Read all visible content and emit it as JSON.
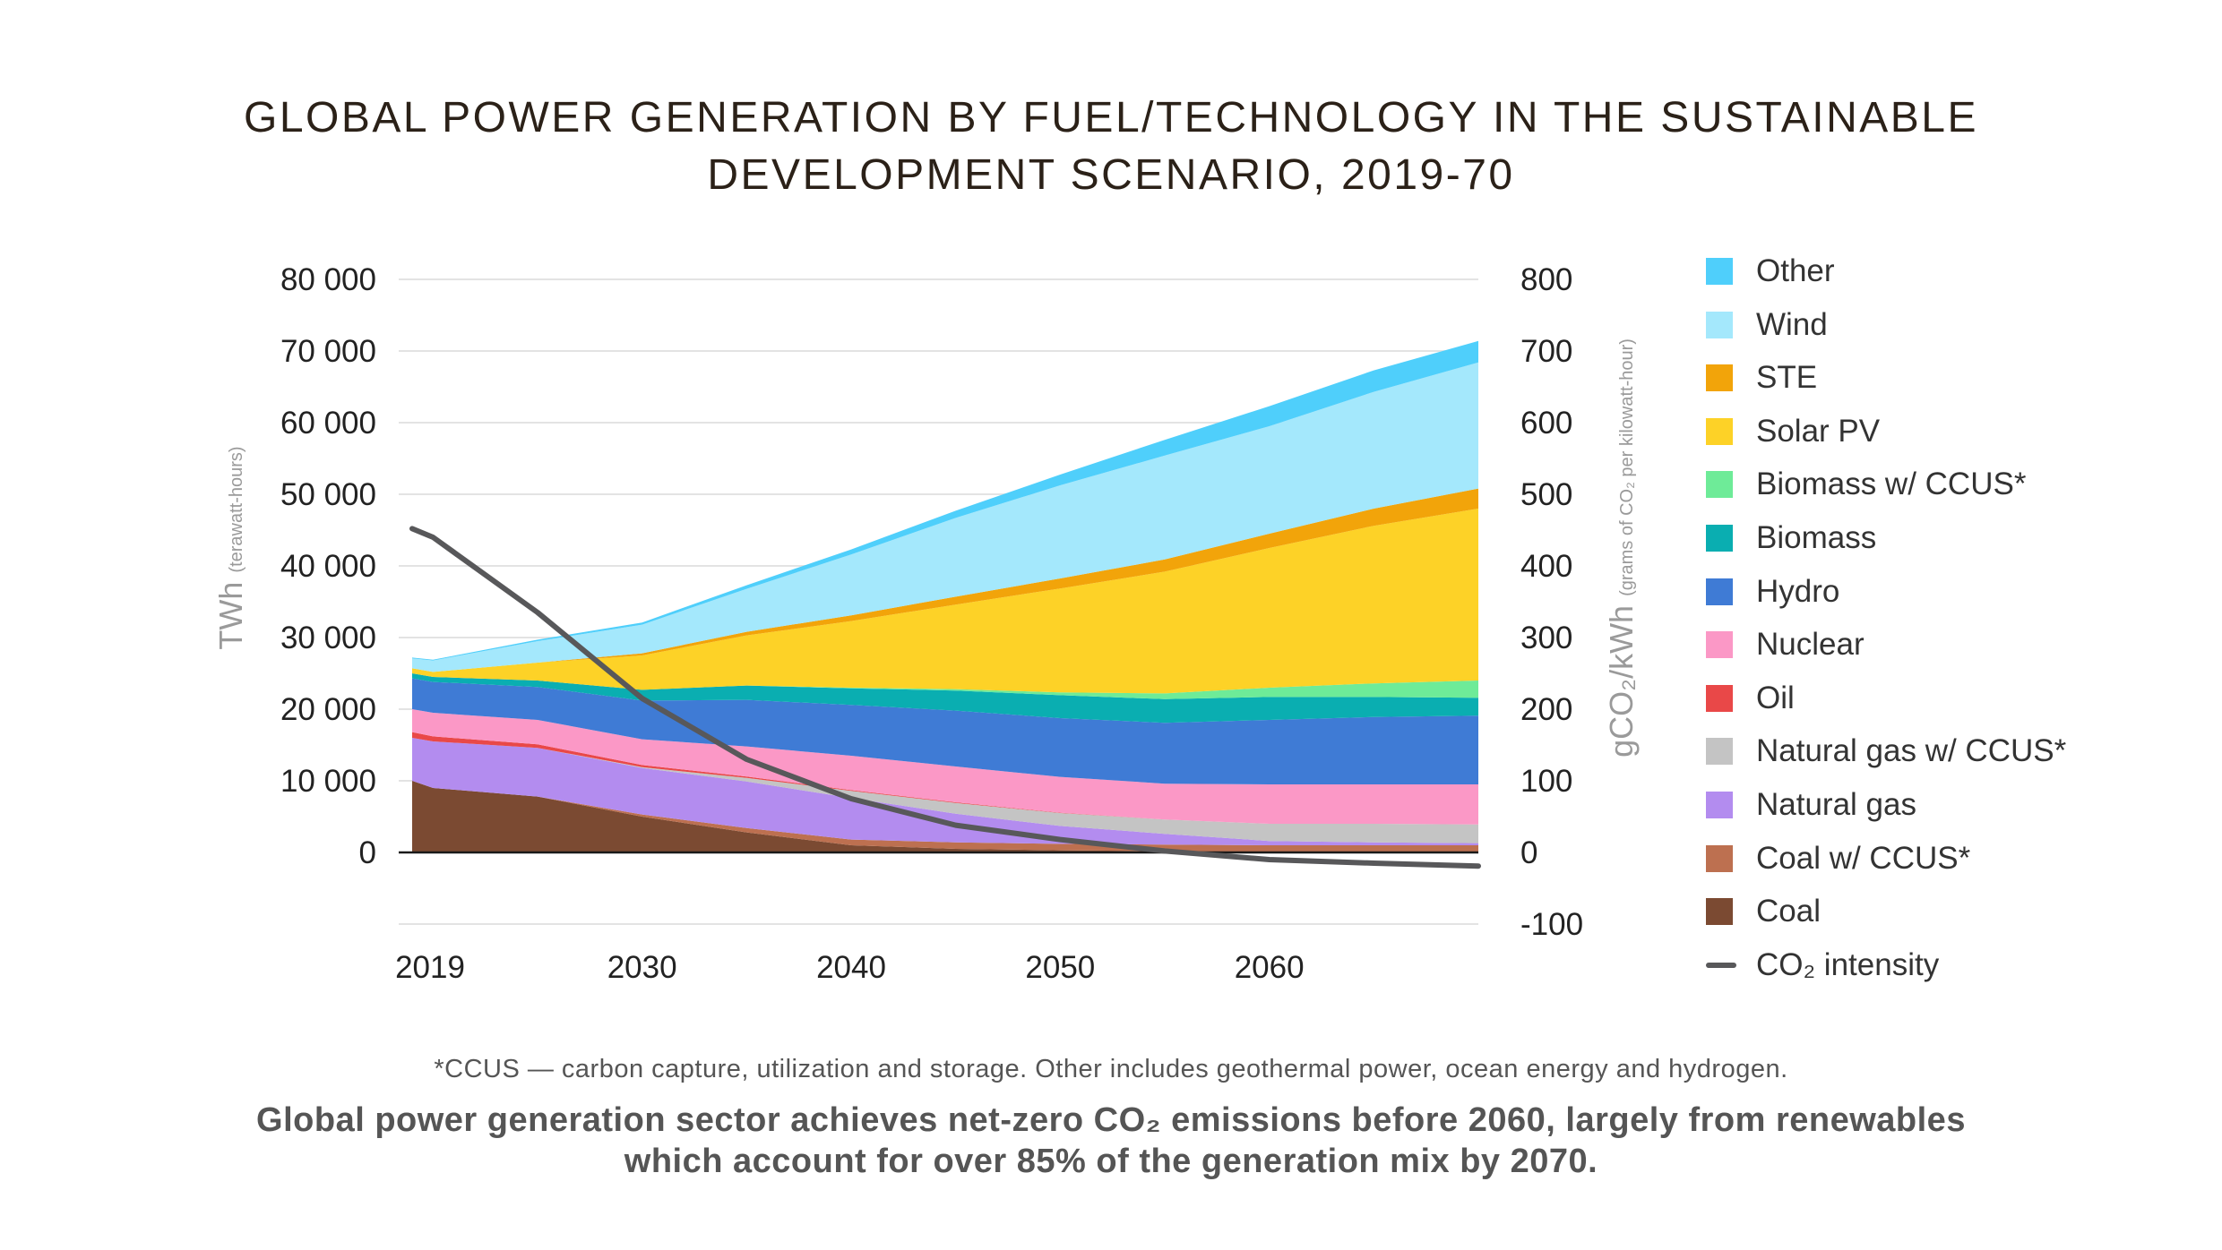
{
  "title": {
    "line1": "GLOBAL POWER GENERATION BY FUEL/TECHNOLOGY IN THE SUSTAINABLE",
    "line2": "DEVELOPMENT SCENARIO, 2019-70"
  },
  "footnote": "*CCUS — carbon capture, utilization and storage. Other includes geothermal power, ocean energy and hydrogen.",
  "caption": {
    "line1": "Global power generation sector achieves net-zero CO₂ emissions before 2060, largely from renewables",
    "line2": "which account for over 85% of the generation mix by 2070."
  },
  "chart_data": {
    "type": "area",
    "stacked": true,
    "x": [
      2019,
      2020,
      2025,
      2030,
      2035,
      2040,
      2045,
      2050,
      2055,
      2060,
      2065,
      2070
    ],
    "xticks": [
      2019,
      2030,
      2040,
      2050,
      2060
    ],
    "xlim": [
      2019,
      2070
    ],
    "ylabel_main": "TWh",
    "ylabel_sub": "(terawatt-hours)",
    "ylim": [
      0,
      80000
    ],
    "yticks": [
      0,
      10000,
      20000,
      30000,
      40000,
      50000,
      60000,
      70000,
      80000
    ],
    "ytick_labels": [
      "0",
      "10 000",
      "20 000",
      "30 000",
      "40 000",
      "50 000",
      "60 000",
      "70 000",
      "80 000"
    ],
    "y2label_main": "gCO₂/kWh",
    "y2label_sub": "(grams of CO₂ per kilowatt-hour)",
    "y2lim": [
      -100,
      800
    ],
    "y2ticks": [
      -100,
      0,
      100,
      200,
      300,
      400,
      500,
      600,
      700,
      800
    ],
    "y2tick_labels": [
      "-100",
      "0",
      "100",
      "200",
      "300",
      "400",
      "500",
      "600",
      "700",
      "800"
    ],
    "grid": true,
    "legend_position": "right",
    "series": [
      {
        "name": "Coal",
        "color": "#7b4a32",
        "values": [
          10000,
          9000,
          7800,
          5000,
          2800,
          1000,
          500,
          300,
          200,
          100,
          100,
          100
        ]
      },
      {
        "name": "Coal w/ CCUS*",
        "color": "#bd7050",
        "values": [
          0,
          0,
          0,
          300,
          600,
          800,
          900,
          900,
          900,
          900,
          900,
          900
        ]
      },
      {
        "name": "Natural gas",
        "color": "#b38cef",
        "values": [
          6000,
          6500,
          6800,
          6500,
          6500,
          5800,
          4000,
          2500,
          1500,
          600,
          400,
          300
        ]
      },
      {
        "name": "Natural gas w/ CCUS*",
        "color": "#c4c4c4",
        "values": [
          0,
          0,
          0,
          100,
          500,
          1000,
          1500,
          1800,
          2000,
          2400,
          2600,
          2600
        ]
      },
      {
        "name": "Oil",
        "color": "#e94848",
        "values": [
          800,
          700,
          500,
          300,
          200,
          100,
          100,
          50,
          0,
          0,
          0,
          0
        ]
      },
      {
        "name": "Nuclear",
        "color": "#fb98c6",
        "values": [
          3200,
          3300,
          3400,
          3600,
          4200,
          4800,
          5000,
          5000,
          5000,
          5500,
          5500,
          5600
        ]
      },
      {
        "name": "Hydro",
        "color": "#3f7bd5",
        "values": [
          4300,
          4300,
          4600,
          5400,
          6500,
          7100,
          7800,
          8200,
          8500,
          9000,
          9400,
          9600
        ]
      },
      {
        "name": "Biomass",
        "color": "#0aaeb1",
        "values": [
          700,
          700,
          900,
          1500,
          2000,
          2300,
          2800,
          3200,
          3300,
          3200,
          2800,
          2500
        ]
      },
      {
        "name": "Biomass w/ CCUS*",
        "color": "#6eeb98",
        "values": [
          0,
          0,
          0,
          0,
          0,
          100,
          200,
          400,
          800,
          1300,
          1900,
          2400
        ]
      },
      {
        "name": "Solar PV",
        "color": "#fdd227",
        "values": [
          700,
          700,
          2500,
          4800,
          7000,
          9300,
          11800,
          14500,
          17000,
          19500,
          22000,
          24000
        ]
      },
      {
        "name": "STE",
        "color": "#f2a40a",
        "values": [
          0,
          0,
          0,
          300,
          500,
          800,
          1100,
          1400,
          1700,
          2000,
          2400,
          2800
        ]
      },
      {
        "name": "Wind",
        "color": "#a4e8fc",
        "values": [
          1400,
          1600,
          3000,
          4000,
          6000,
          8500,
          11000,
          13000,
          14500,
          15000,
          16300,
          17600
        ]
      },
      {
        "name": "Other",
        "color": "#4fcffb",
        "values": [
          100,
          100,
          200,
          300,
          500,
          700,
          1000,
          1500,
          2200,
          2800,
          3000,
          3000
        ]
      }
    ],
    "line_series": {
      "name": "CO₂ intensity",
      "color": "#58585a",
      "axis": "right",
      "x": [
        2019,
        2020,
        2025,
        2030,
        2035,
        2040,
        2045,
        2050,
        2055,
        2060,
        2065,
        2070
      ],
      "values": [
        452,
        440,
        335,
        215,
        130,
        75,
        38,
        18,
        2,
        -10,
        -15,
        -19
      ]
    }
  }
}
